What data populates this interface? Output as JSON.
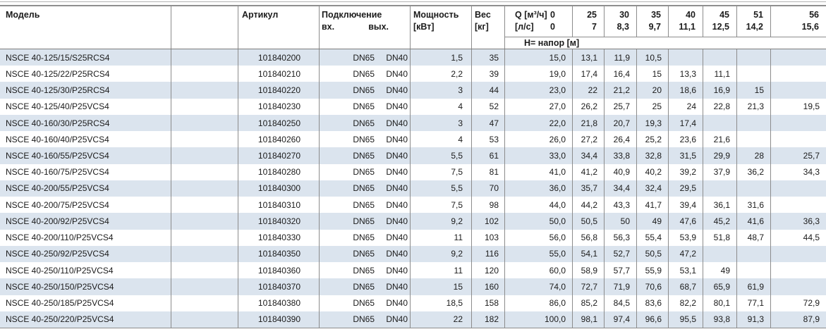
{
  "colors": {
    "alt_row": "#dbe4ee",
    "border": "#8c8c8c",
    "text": "#1b1b1b"
  },
  "table": {
    "headers": {
      "model": "Модель",
      "article": "Артикул",
      "connection": "Подключение",
      "conn_in": "вх.",
      "conn_out": "вых.",
      "power_line1": "Мощность",
      "power_line2": "[кВт]",
      "weight_line1": "Вес",
      "weight_line2": "[кг]",
      "q_line1_label": "Q [м³/ч]",
      "q_line1_zero": "0",
      "q_line2_label": "[л/с]",
      "q_line2_zero": "0",
      "q_m3h": [
        "25",
        "30",
        "35",
        "40",
        "45",
        "51",
        "56"
      ],
      "q_ls": [
        "7",
        "8,3",
        "9,7",
        "11,1",
        "12,5",
        "14,2",
        "15,6"
      ],
      "head_label": "Н= напор [м]"
    },
    "rows": [
      {
        "model": "NSCE 40-125/15/S25RCS4",
        "article": "101840200",
        "conn_in": "DN65",
        "conn_out": "DN40",
        "power": "1,5",
        "weight": "35",
        "q": [
          "15,0",
          "13,1",
          "11,9",
          "10,5",
          "",
          "",
          "",
          ""
        ]
      },
      {
        "model": "NSCE 40-125/22/P25RCS4",
        "article": "101840210",
        "conn_in": "DN65",
        "conn_out": "DN40",
        "power": "2,2",
        "weight": "39",
        "q": [
          "19,0",
          "17,4",
          "16,4",
          "15",
          "13,3",
          "11,1",
          "",
          ""
        ]
      },
      {
        "model": "NSCE 40-125/30/P25RCS4",
        "article": "101840220",
        "conn_in": "DN65",
        "conn_out": "DN40",
        "power": "3",
        "weight": "44",
        "q": [
          "23,0",
          "22",
          "21,2",
          "20",
          "18,6",
          "16,9",
          "15",
          ""
        ]
      },
      {
        "model": "NSCE 40-125/40/P25VCS4",
        "article": "101840230",
        "conn_in": "DN65",
        "conn_out": "DN40",
        "power": "4",
        "weight": "52",
        "q": [
          "27,0",
          "26,2",
          "25,7",
          "25",
          "24",
          "22,8",
          "21,3",
          "19,5"
        ]
      },
      {
        "model": "NSCE 40-160/30/P25RCS4",
        "article": "101840250",
        "conn_in": "DN65",
        "conn_out": "DN40",
        "power": "3",
        "weight": "47",
        "q": [
          "22,0",
          "21,8",
          "20,7",
          "19,3",
          "17,4",
          "",
          "",
          ""
        ]
      },
      {
        "model": "NSCE 40-160/40/P25VCS4",
        "article": "101840260",
        "conn_in": "DN65",
        "conn_out": "DN40",
        "power": "4",
        "weight": "53",
        "q": [
          "26,0",
          "27,2",
          "26,4",
          "25,2",
          "23,6",
          "21,6",
          "",
          ""
        ]
      },
      {
        "model": "NSCE 40-160/55/P25VCS4",
        "article": "101840270",
        "conn_in": "DN65",
        "conn_out": "DN40",
        "power": "5,5",
        "weight": "61",
        "q": [
          "33,0",
          "34,4",
          "33,8",
          "32,8",
          "31,5",
          "29,9",
          "28",
          "25,7"
        ]
      },
      {
        "model": "NSCE 40-160/75/P25VCS4",
        "article": "101840280",
        "conn_in": "DN65",
        "conn_out": "DN40",
        "power": "7,5",
        "weight": "81",
        "q": [
          "41,0",
          "41,2",
          "40,9",
          "40,2",
          "39,2",
          "37,9",
          "36,2",
          "34,3"
        ]
      },
      {
        "model": "NSCE 40-200/55/P25VCS4",
        "article": "101840300",
        "conn_in": "DN65",
        "conn_out": "DN40",
        "power": "5,5",
        "weight": "70",
        "q": [
          "36,0",
          "35,7",
          "34,4",
          "32,4",
          "29,5",
          "",
          "",
          ""
        ]
      },
      {
        "model": "NSCE 40-200/75/P25VCS4",
        "article": "101840310",
        "conn_in": "DN65",
        "conn_out": "DN40",
        "power": "7,5",
        "weight": "98",
        "q": [
          "44,0",
          "44,2",
          "43,3",
          "41,7",
          "39,4",
          "36,1",
          "31,6",
          ""
        ]
      },
      {
        "model": "NSCE 40-200/92/P25VCS4",
        "article": "101840320",
        "conn_in": "DN65",
        "conn_out": "DN40",
        "power": "9,2",
        "weight": "102",
        "q": [
          "50,0",
          "50,5",
          "50",
          "49",
          "47,6",
          "45,2",
          "41,6",
          "36,3"
        ]
      },
      {
        "model": "NSCE 40-200/110/P25VCS4",
        "article": "101840330",
        "conn_in": "DN65",
        "conn_out": "DN40",
        "power": "11",
        "weight": "103",
        "q": [
          "56,0",
          "56,8",
          "56,3",
          "55,4",
          "53,9",
          "51,8",
          "48,7",
          "44,5"
        ]
      },
      {
        "model": "NSCE 40-250/92/P25VCS4",
        "article": "101840350",
        "conn_in": "DN65",
        "conn_out": "DN40",
        "power": "9,2",
        "weight": "116",
        "q": [
          "55,0",
          "54,1",
          "52,7",
          "50,5",
          "47,2",
          "",
          "",
          ""
        ]
      },
      {
        "model": "NSCE 40-250/110/P25VCS4",
        "article": "101840360",
        "conn_in": "DN65",
        "conn_out": "DN40",
        "power": "11",
        "weight": "120",
        "q": [
          "60,0",
          "58,9",
          "57,7",
          "55,9",
          "53,1",
          "49",
          "",
          ""
        ]
      },
      {
        "model": "NSCE 40-250/150/P25VCS4",
        "article": "101840370",
        "conn_in": "DN65",
        "conn_out": "DN40",
        "power": "15",
        "weight": "160",
        "q": [
          "74,0",
          "72,7",
          "71,9",
          "70,6",
          "68,7",
          "65,9",
          "61,9",
          ""
        ]
      },
      {
        "model": "NSCE 40-250/185/P25VCS4",
        "article": "101840380",
        "conn_in": "DN65",
        "conn_out": "DN40",
        "power": "18,5",
        "weight": "158",
        "q": [
          "86,0",
          "85,2",
          "84,5",
          "83,6",
          "82,2",
          "80,1",
          "77,1",
          "72,9"
        ]
      },
      {
        "model": "NSCE 40-250/220/P25VCS4",
        "article": "101840390",
        "conn_in": "DN65",
        "conn_out": "DN40",
        "power": "22",
        "weight": "182",
        "q": [
          "100,0",
          "98,1",
          "97,4",
          "96,6",
          "95,5",
          "93,8",
          "91,3",
          "87,9"
        ]
      }
    ]
  }
}
